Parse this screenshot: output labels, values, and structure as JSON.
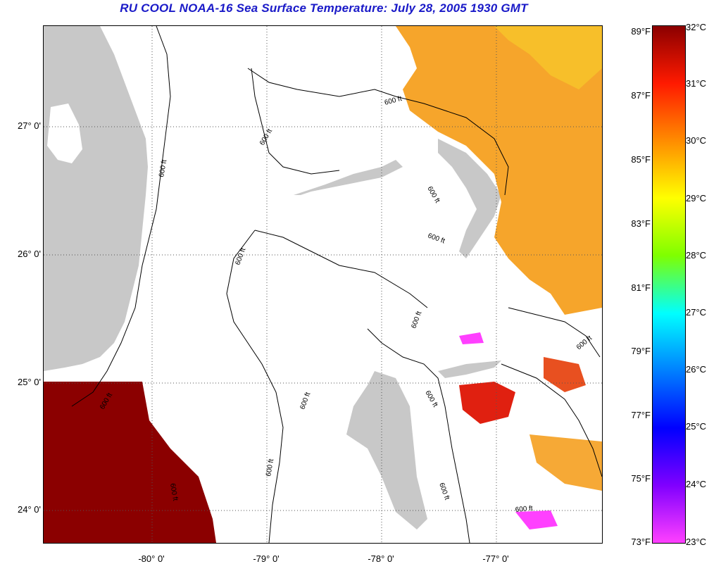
{
  "title": "RU COOL  NOAA-16  Sea Surface Temperature:  July 28, 2005 1930 GMT",
  "axes": {
    "lat_labels": [
      "27° 0'",
      "26° 0'",
      "25° 0'",
      "24° 0'"
    ],
    "lon_labels": [
      "-80° 0'",
      "-79° 0'",
      "-78° 0'",
      "-77° 0'"
    ]
  },
  "contours": {
    "label": "600 ft"
  },
  "colorbar": {
    "fahrenheit": [
      "89°F",
      "87°F",
      "85°F",
      "83°F",
      "81°F",
      "79°F",
      "77°F",
      "75°F",
      "73°F"
    ],
    "celsius": [
      "32°C",
      "31°C",
      "30°C",
      "29°C",
      "28°C",
      "27°C",
      "26°C",
      "25°C",
      "24°C",
      "23°C"
    ],
    "colors": [
      "#8b0000",
      "#ff1a00",
      "#ff8c00",
      "#ffff00",
      "#7fff00",
      "#00ffff",
      "#0080ff",
      "#0000ff",
      "#8000ff",
      "#ff40ff"
    ]
  },
  "palette": {
    "land": "#c8c8c8",
    "ocean": "#ffffff",
    "hot": "#8b0000",
    "warm": "#f5a020",
    "red": "#e02010"
  }
}
